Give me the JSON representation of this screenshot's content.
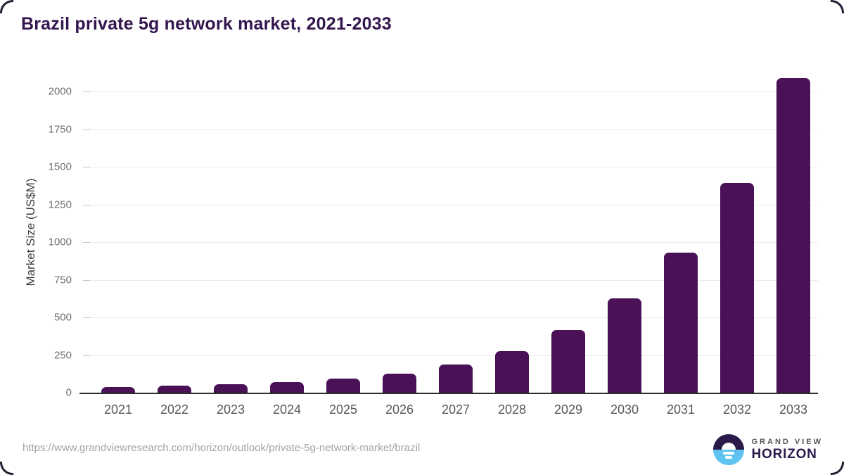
{
  "chart_data": {
    "type": "bar",
    "title": "Brazil private 5g network market, 2021-2033",
    "categories": [
      "2021",
      "2022",
      "2023",
      "2024",
      "2025",
      "2026",
      "2027",
      "2028",
      "2029",
      "2030",
      "2031",
      "2032",
      "2033"
    ],
    "values": [
      37,
      45,
      55,
      70,
      92,
      127,
      186,
      274,
      414,
      625,
      931,
      1393,
      2087
    ],
    "xlabel": "",
    "ylabel": "Market Size (US$M)",
    "yticks": [
      0,
      250,
      500,
      750,
      1000,
      1250,
      1500,
      1750,
      2000
    ],
    "ylim": [
      0,
      2150
    ],
    "grid": "horizontal",
    "legend": "none",
    "bar_color": "#4a1157"
  },
  "footer": {
    "source_url": "https://www.grandviewresearch.com/horizon/outlook/private-5g-network-market/brazil",
    "logo": {
      "line1": "GRAND VIEW",
      "line2": "HORIZON"
    }
  },
  "colors": {
    "title_text": "#33164e",
    "bar": "#4a1157",
    "axis_line": "#2d2d2d",
    "gridline": "#ebebeb",
    "tick_dash": "#c4c4c4",
    "y_tick_label": "#6f6f6f",
    "x_tick_label": "#58585a",
    "url_text": "#a3a3a3",
    "logo_dark_half": "#2a1a4a",
    "logo_blue_half": "#5fc3f2",
    "logo_horizon_text": "#2b1b4d"
  }
}
